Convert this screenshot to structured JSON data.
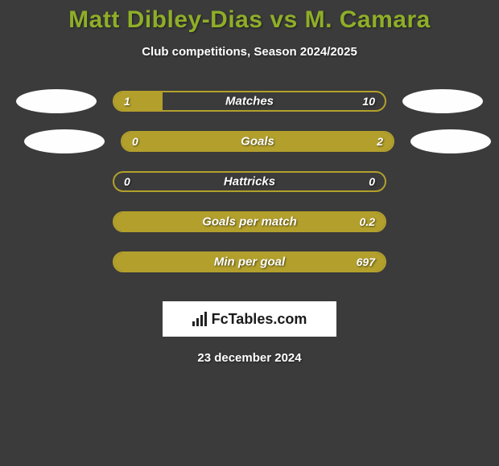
{
  "header": {
    "title": "Matt Dibley-Dias vs M. Camara",
    "subtitle": "Club competitions, Season 2024/2025"
  },
  "colors": {
    "background": "#3b3b3b",
    "accent_title": "#8fae28",
    "bar_border": "#b3a02c",
    "bar_fill": "#b3a02c",
    "text": "#ffffff",
    "avatar": "#fefefe"
  },
  "avatar1_row": 0,
  "avatar2_row": 1,
  "stats": [
    {
      "label": "Matches",
      "left_value": "1",
      "right_value": "10",
      "left_width_pct": 18,
      "right_width_pct": 0
    },
    {
      "label": "Goals",
      "left_value": "0",
      "right_value": "2",
      "left_width_pct": 0,
      "right_width_pct": 100
    },
    {
      "label": "Hattricks",
      "left_value": "0",
      "right_value": "0",
      "left_width_pct": 0,
      "right_width_pct": 0
    },
    {
      "label": "Goals per match",
      "left_value": "",
      "right_value": "0.2",
      "left_width_pct": 0,
      "right_width_pct": 100
    },
    {
      "label": "Min per goal",
      "left_value": "",
      "right_value": "697",
      "left_width_pct": 0,
      "right_width_pct": 100
    }
  ],
  "brand": {
    "text": "FcTables.com"
  },
  "footer": {
    "date": "23 december 2024"
  },
  "typography": {
    "title_fontsize": 30,
    "subtitle_fontsize": 15,
    "label_fontsize": 15,
    "value_fontsize": 14
  }
}
